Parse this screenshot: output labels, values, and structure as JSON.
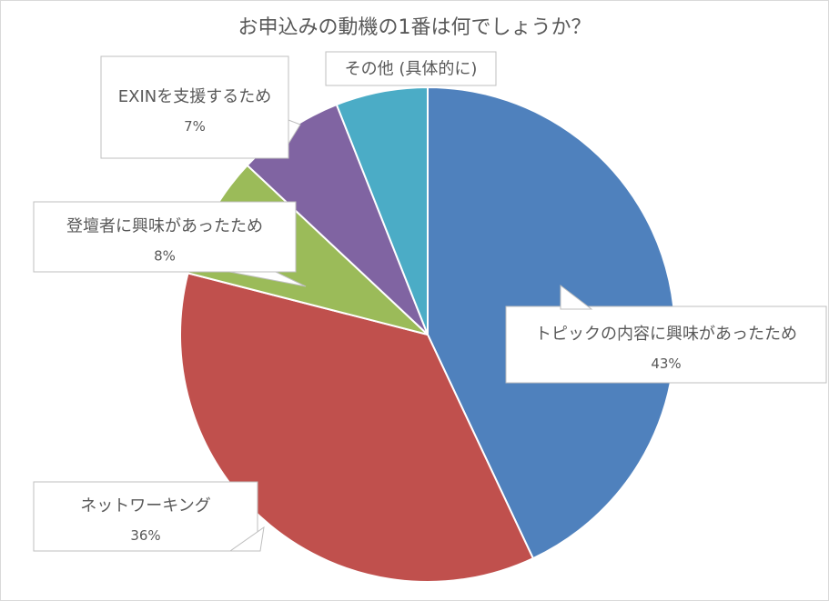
{
  "chart_data": {
    "type": "pie",
    "title": "お申込みの動機の1番は何でしょうか？",
    "slices": [
      {
        "label": "トピックの内容に興味があったため",
        "value": 43,
        "display": "43%",
        "color": "#4f81bd"
      },
      {
        "label": "ネットワーキング",
        "value": 36,
        "display": "36%",
        "color": "#c0504d"
      },
      {
        "label": "登壇者に興味があったため",
        "value": 8,
        "display": "8%",
        "color": "#9bbb59"
      },
      {
        "label": "EXINを支援するため",
        "value": 7,
        "display": "7%",
        "color": "#8064a2"
      },
      {
        "label": "その他 (具体的に)",
        "value": 6,
        "display": "",
        "color": "#4bacc6"
      }
    ]
  }
}
